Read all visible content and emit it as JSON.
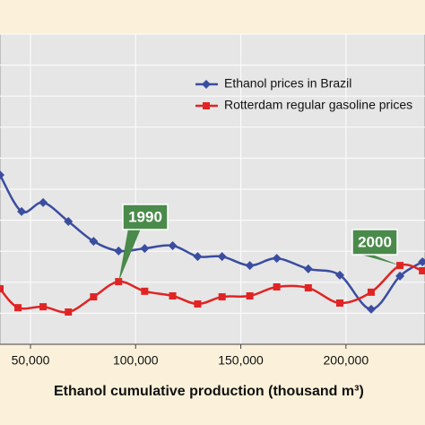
{
  "chart_data": {
    "type": "line",
    "x_label": "Ethanol cumulative production (thousand m³)",
    "xlim": [
      35500,
      237600
    ],
    "xticks": [
      {
        "value": 50000,
        "label": "50,000"
      },
      {
        "value": 100000,
        "label": "100,000"
      },
      {
        "value": 150000,
        "label": "150,000"
      },
      {
        "value": 200000,
        "label": "200,000"
      }
    ],
    "ylim": [
      0,
      10
    ],
    "ygrid": [
      1,
      2,
      3,
      4,
      5,
      6,
      7,
      8,
      9,
      10
    ],
    "legend": "top-right",
    "series": [
      {
        "name": "Ethanol prices in Brazil",
        "color": "#3a4da0",
        "marker": "diamond",
        "x": [
          35500,
          45760,
          56000,
          68000,
          80000,
          91900,
          104300,
          117600,
          129500,
          141100,
          154300,
          167100,
          182100,
          197100,
          212000,
          225700,
          236400
        ],
        "values": [
          5.46,
          4.28,
          4.57,
          3.96,
          3.32,
          3.01,
          3.09,
          3.18,
          2.83,
          2.83,
          2.54,
          2.77,
          2.43,
          2.23,
          1.13,
          2.2,
          2.66
        ]
      },
      {
        "name": "Rotterdam regular gasoline prices",
        "color": "#e02424",
        "marker": "square",
        "x": [
          35500,
          44050,
          56000,
          68000,
          80000,
          91900,
          104300,
          117600,
          129500,
          141100,
          154300,
          167100,
          182100,
          197100,
          212000,
          225700,
          236400
        ],
        "values": [
          1.79,
          1.18,
          1.21,
          1.04,
          1.53,
          2.02,
          1.71,
          1.56,
          1.3,
          1.53,
          1.56,
          1.85,
          1.82,
          1.33,
          1.68,
          2.54,
          2.37
        ]
      }
    ],
    "annotations": [
      {
        "text": "1990",
        "x": 91900,
        "color": "#4a8a4a"
      },
      {
        "text": "2000",
        "x": 225700,
        "color": "#4a8a4a"
      }
    ]
  }
}
